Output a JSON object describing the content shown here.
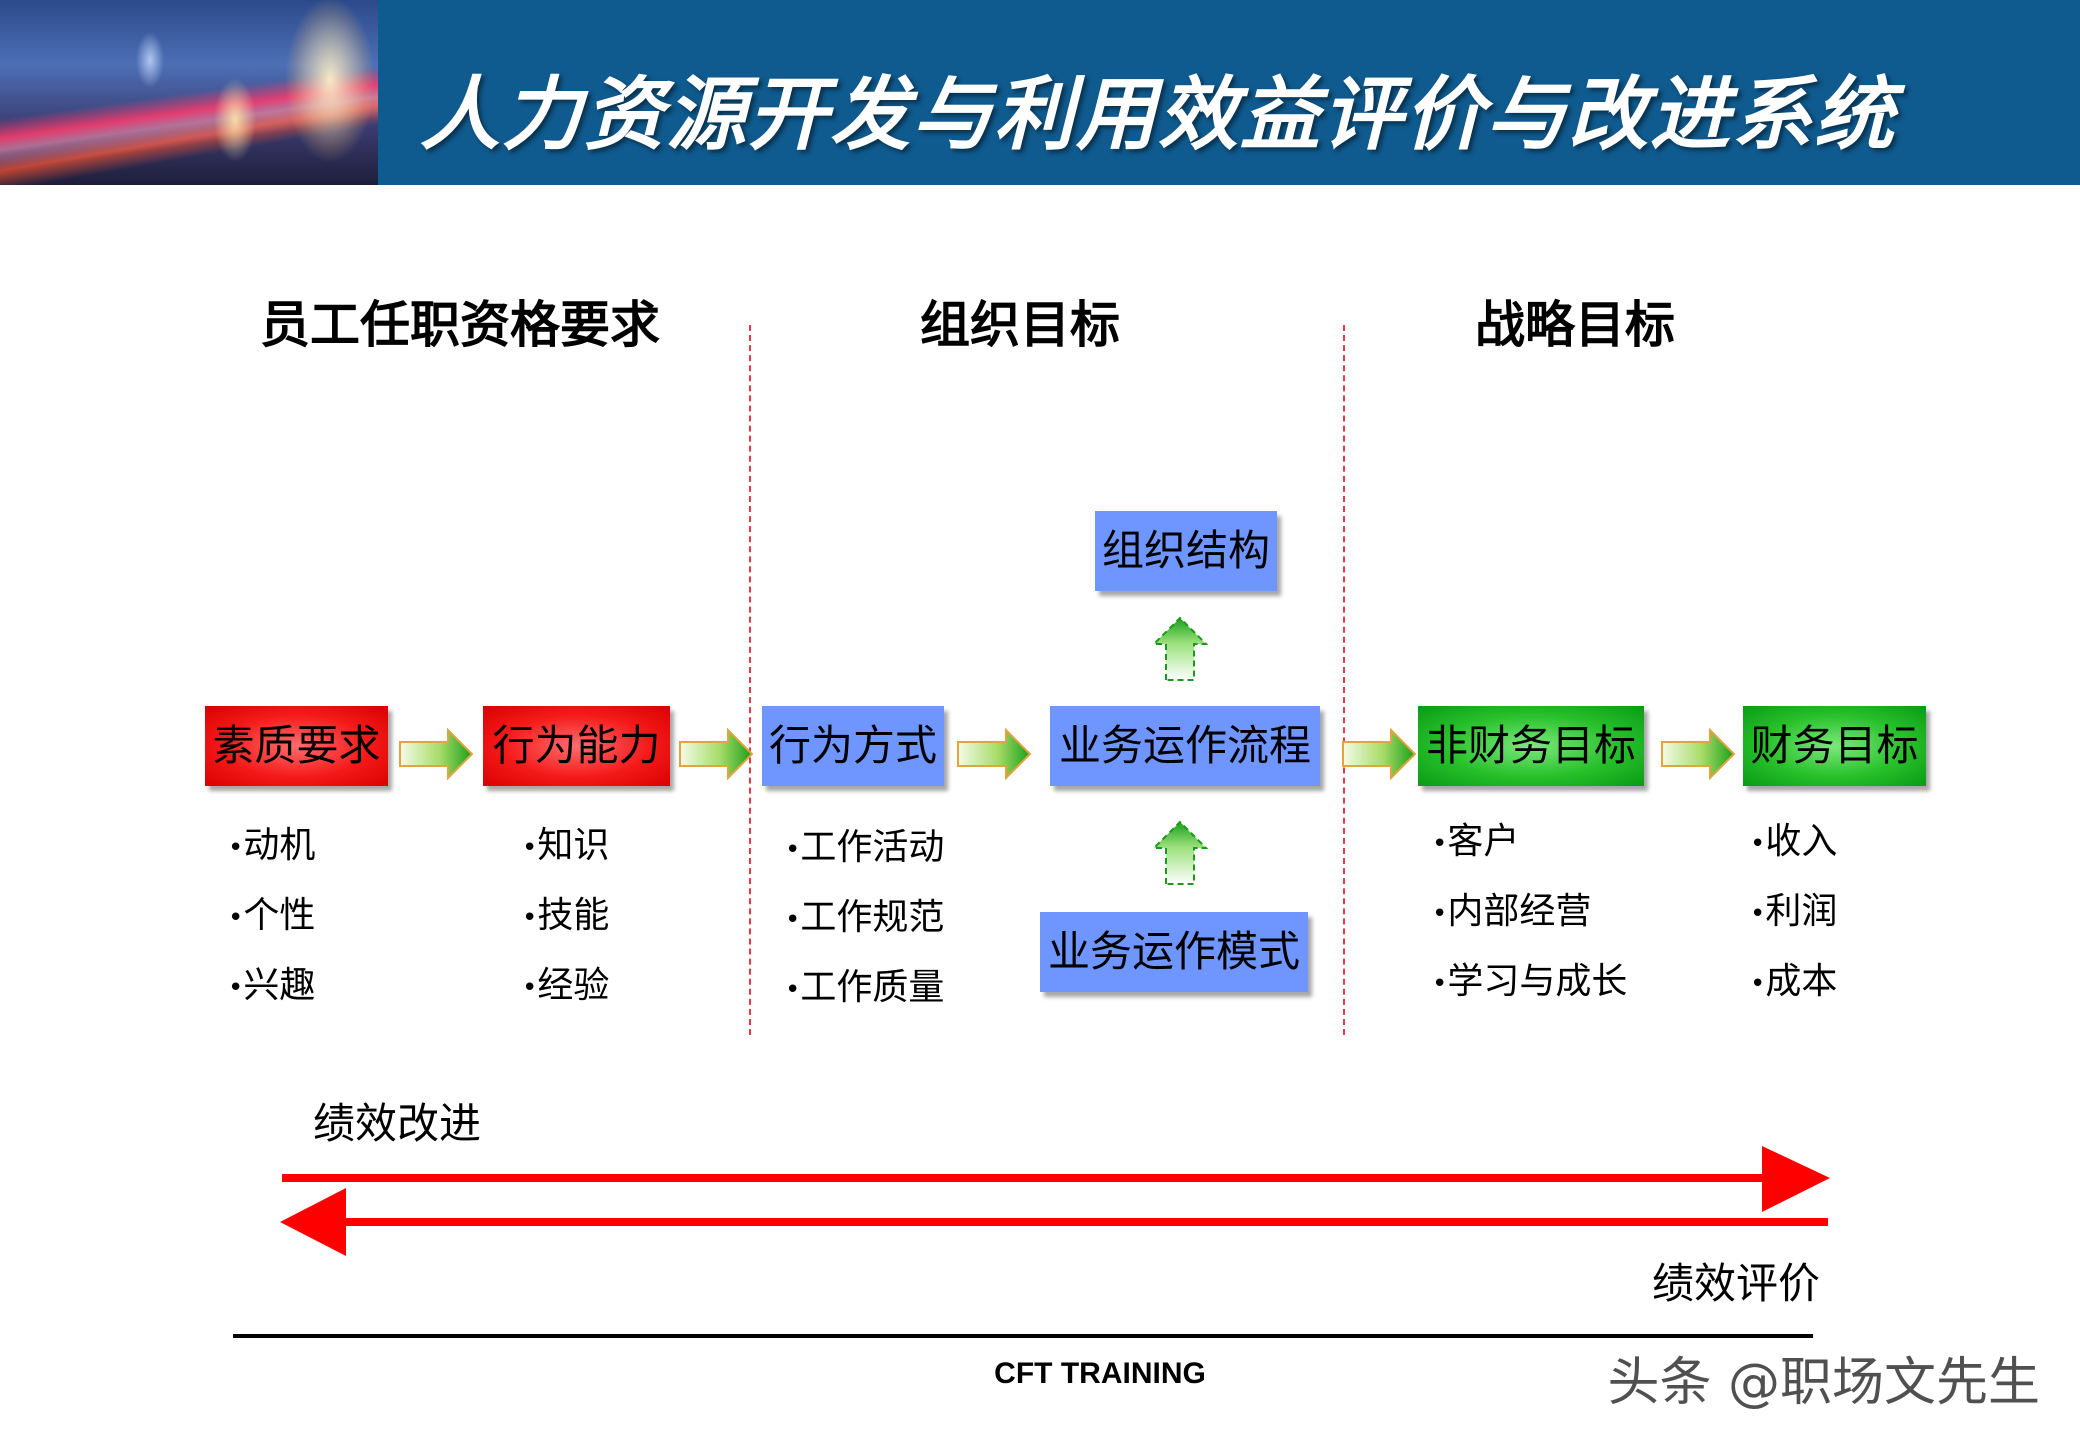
{
  "header": {
    "title": "人力资源开发与利用效益评价与改进系统"
  },
  "columns": {
    "left_title": "员工任职资格要求",
    "middle_title": "组织目标",
    "right_title": "战略目标"
  },
  "flow": {
    "quality": {
      "label": "素质要求",
      "items": [
        "动机",
        "个性",
        "兴趣"
      ]
    },
    "behavior_ability": {
      "label": "行为能力",
      "items": [
        "知识",
        "技能",
        "经验"
      ]
    },
    "behavior_style": {
      "label": "行为方式",
      "items": [
        "工作活动",
        "工作规范",
        "工作质量"
      ]
    },
    "business_process": {
      "label": "业务运作流程"
    },
    "org_structure": {
      "label": "组织结构"
    },
    "business_model": {
      "label": "业务运作模式"
    },
    "nonfinancial": {
      "label": "非财务目标",
      "items": [
        "客户",
        "内部经营",
        "学习与成长"
      ]
    },
    "financial": {
      "label": "财务目标",
      "items": [
        "收入",
        "利润",
        "成本"
      ]
    }
  },
  "bullet_symbol": "•",
  "performance": {
    "improve_label": "绩效改进",
    "evaluate_label": "绩效评价"
  },
  "colors": {
    "header_bg": "#0f5a8e",
    "red_box": "#f51a1a",
    "blue_box": "#6f96ff",
    "green_box": "#27c02a",
    "arrow_red": "#ff0000",
    "divider": "#e8394a"
  },
  "footer": {
    "text": "CFT TRAINING"
  },
  "watermark": {
    "text": "头条 @职场文先生"
  }
}
